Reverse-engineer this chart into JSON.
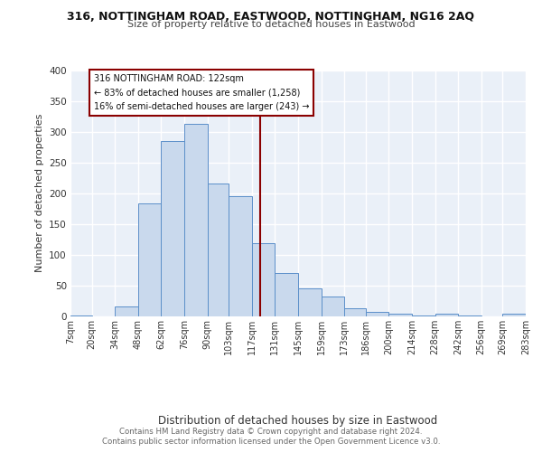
{
  "title_line1": "316, NOTTINGHAM ROAD, EASTWOOD, NOTTINGHAM, NG16 2AQ",
  "title_line2": "Size of property relative to detached houses in Eastwood",
  "xlabel": "Distribution of detached houses by size in Eastwood",
  "ylabel": "Number of detached properties",
  "bar_edges": [
    7,
    20,
    34,
    48,
    62,
    76,
    90,
    103,
    117,
    131,
    145,
    159,
    173,
    186,
    200,
    214,
    228,
    242,
    256,
    269,
    283
  ],
  "bar_heights": [
    1,
    0,
    16,
    184,
    285,
    313,
    216,
    195,
    119,
    70,
    45,
    33,
    13,
    7,
    4,
    1,
    5,
    1,
    0,
    4
  ],
  "bar_color": "#c9d9ed",
  "bar_edge_color": "#5b8fc9",
  "property_size": 122,
  "vline_color": "#8b0000",
  "annotation_box_edge_color": "#8b0000",
  "annotation_title": "316 NOTTINGHAM ROAD: 122sqm",
  "annotation_line1": "← 83% of detached houses are smaller (1,258)",
  "annotation_line2": "16% of semi-detached houses are larger (243) →",
  "tick_labels": [
    "7sqm",
    "20sqm",
    "34sqm",
    "48sqm",
    "62sqm",
    "76sqm",
    "90sqm",
    "103sqm",
    "117sqm",
    "131sqm",
    "145sqm",
    "159sqm",
    "173sqm",
    "186sqm",
    "200sqm",
    "214sqm",
    "228sqm",
    "242sqm",
    "256sqm",
    "269sqm",
    "283sqm"
  ],
  "ylim": [
    0,
    400
  ],
  "yticks": [
    0,
    50,
    100,
    150,
    200,
    250,
    300,
    350,
    400
  ],
  "footer_line1": "Contains HM Land Registry data © Crown copyright and database right 2024.",
  "footer_line2": "Contains public sector information licensed under the Open Government Licence v3.0.",
  "plot_bg_color": "#eaf0f8",
  "grid_color": "#ffffff",
  "fig_bg_color": "#ffffff"
}
